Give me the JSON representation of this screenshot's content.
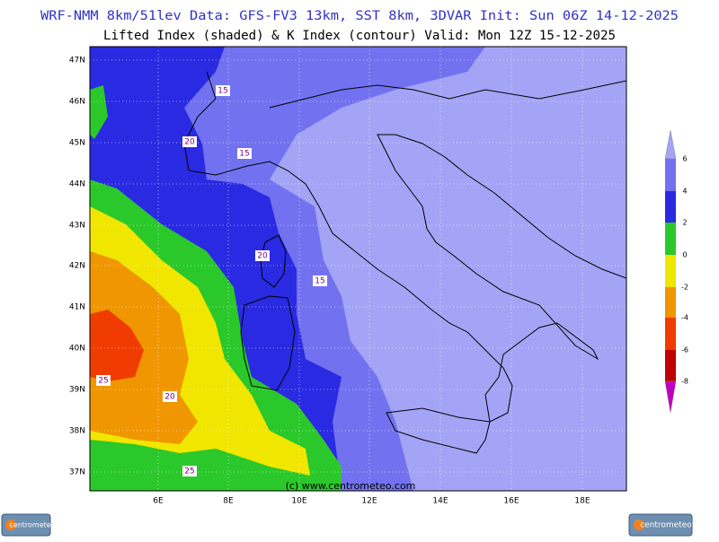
{
  "header": {
    "line1": "WRF-NMM 8km/51lev  Data: GFS-FV3 13km, SST 8km, 3DVAR  Init: Sun 06Z 14-12-2025",
    "line2": "Lifted Index (shaded) & K Index (contour)  Valid: Mon 12Z 15-12-2025"
  },
  "map": {
    "lat_labels": [
      "47N",
      "46N",
      "45N",
      "44N",
      "43N",
      "42N",
      "41N",
      "40N",
      "39N",
      "38N",
      "37N"
    ],
    "lon_labels": [
      "6E",
      "8E",
      "10E",
      "12E",
      "14E",
      "16E",
      "18E"
    ],
    "contour_labels": [
      "15",
      "20",
      "15",
      "20",
      "15",
      "25",
      "20",
      "25"
    ],
    "watermark": "(c) www.centrometeo.com"
  },
  "legend": {
    "levels": [
      "6",
      "4",
      "2",
      "0",
      "-2",
      "-4",
      "-6",
      "-8"
    ]
  },
  "logos": [
    "centrometeo",
    "centrometeo"
  ]
}
